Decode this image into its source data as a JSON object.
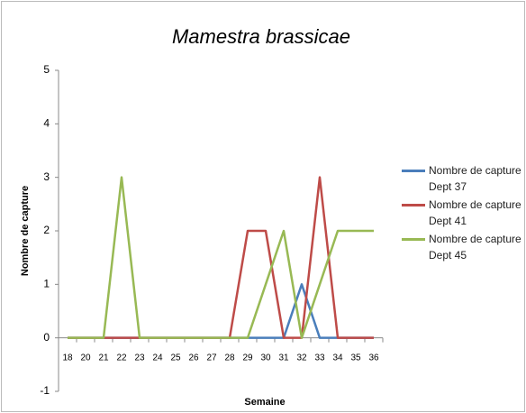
{
  "chart_data": {
    "type": "line",
    "title": "Mamestra brassicae",
    "x_label": "Semaine",
    "y_label": "Nombre de capture",
    "categories": [
      "18",
      "20",
      "21",
      "22",
      "23",
      "24",
      "25",
      "26",
      "27",
      "28",
      "29",
      "30",
      "31",
      "32",
      "33",
      "34",
      "35",
      "36"
    ],
    "series": [
      {
        "name": "Nombre de capture Dept 37",
        "color": "#4a7ebb",
        "values": [
          0,
          0,
          0,
          0,
          0,
          0,
          0,
          0,
          0,
          0,
          0,
          0,
          0,
          1,
          0,
          0,
          0,
          0
        ]
      },
      {
        "name": "Nombre de capture Dept 41",
        "color": "#be4b48",
        "values": [
          0,
          0,
          0,
          0,
          0,
          0,
          0,
          0,
          0,
          0,
          2,
          2,
          0,
          0,
          3,
          0,
          0,
          0
        ]
      },
      {
        "name": "Nombre de capture Dept 45",
        "color": "#98b954",
        "values": [
          0,
          0,
          0,
          3,
          0,
          0,
          0,
          0,
          0,
          0,
          0,
          1,
          2,
          0,
          1,
          2,
          2,
          2
        ]
      }
    ],
    "ylim": [
      -1,
      5
    ],
    "yticks": [
      -1,
      0,
      1,
      2,
      3,
      4,
      5
    ],
    "grid": false,
    "legend": "right"
  }
}
